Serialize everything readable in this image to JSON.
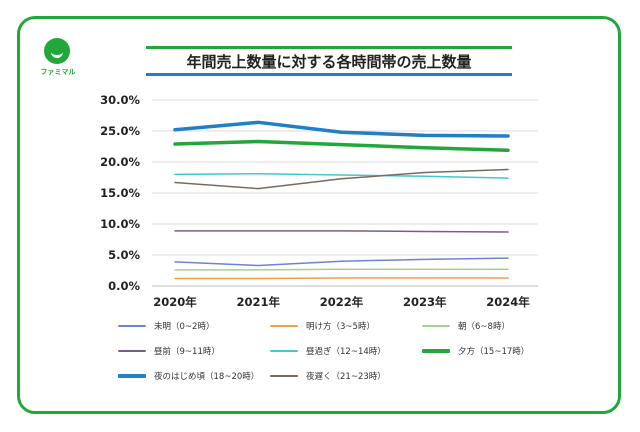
{
  "logo": {
    "text": "ファミマル"
  },
  "chart_data": {
    "type": "line",
    "title": "年間売上数量に対する各時間帯の売上数量",
    "categories": [
      "2020年",
      "2021年",
      "2022年",
      "2023年",
      "2024年"
    ],
    "y_tick_labels": [
      "0.0%",
      "5.0%",
      "10.0%",
      "15.0%",
      "20.0%",
      "25.0%",
      "30.0%"
    ],
    "ylim": [
      0,
      30
    ],
    "grid": true,
    "legend_position": "bottom",
    "series": [
      {
        "name": "未明（0~2時）",
        "color": "#6b83d6",
        "width": 1.5,
        "values": [
          3.9,
          3.3,
          4.0,
          4.3,
          4.5
        ]
      },
      {
        "name": "明け方（3~5時）",
        "color": "#f2a13a",
        "width": 1.5,
        "values": [
          1.2,
          1.2,
          1.3,
          1.3,
          1.3
        ]
      },
      {
        "name": "朝（6~8時）",
        "color": "#a8d08d",
        "width": 1.5,
        "values": [
          2.6,
          2.6,
          2.7,
          2.7,
          2.7
        ]
      },
      {
        "name": "昼前（9~11時）",
        "color": "#7b5a8c",
        "width": 1.5,
        "values": [
          8.9,
          8.9,
          8.9,
          8.8,
          8.7
        ]
      },
      {
        "name": "昼過ぎ（12~14時）",
        "color": "#41c7d6",
        "width": 1.5,
        "values": [
          18.0,
          18.1,
          17.9,
          17.7,
          17.4
        ]
      },
      {
        "name": "夕方（15~17時）",
        "color": "#22a83a",
        "width": 3.5,
        "values": [
          22.9,
          23.3,
          22.8,
          22.3,
          21.9
        ]
      },
      {
        "name": "夜のはじめ頃（18~20時）",
        "color": "#1f7fc7",
        "width": 3.5,
        "values": [
          25.2,
          26.4,
          24.8,
          24.3,
          24.2
        ]
      },
      {
        "name": "夜遅く（21~23時）",
        "color": "#7a6a5e",
        "width": 1.5,
        "values": [
          16.7,
          15.7,
          17.3,
          18.3,
          18.8
        ]
      }
    ]
  }
}
